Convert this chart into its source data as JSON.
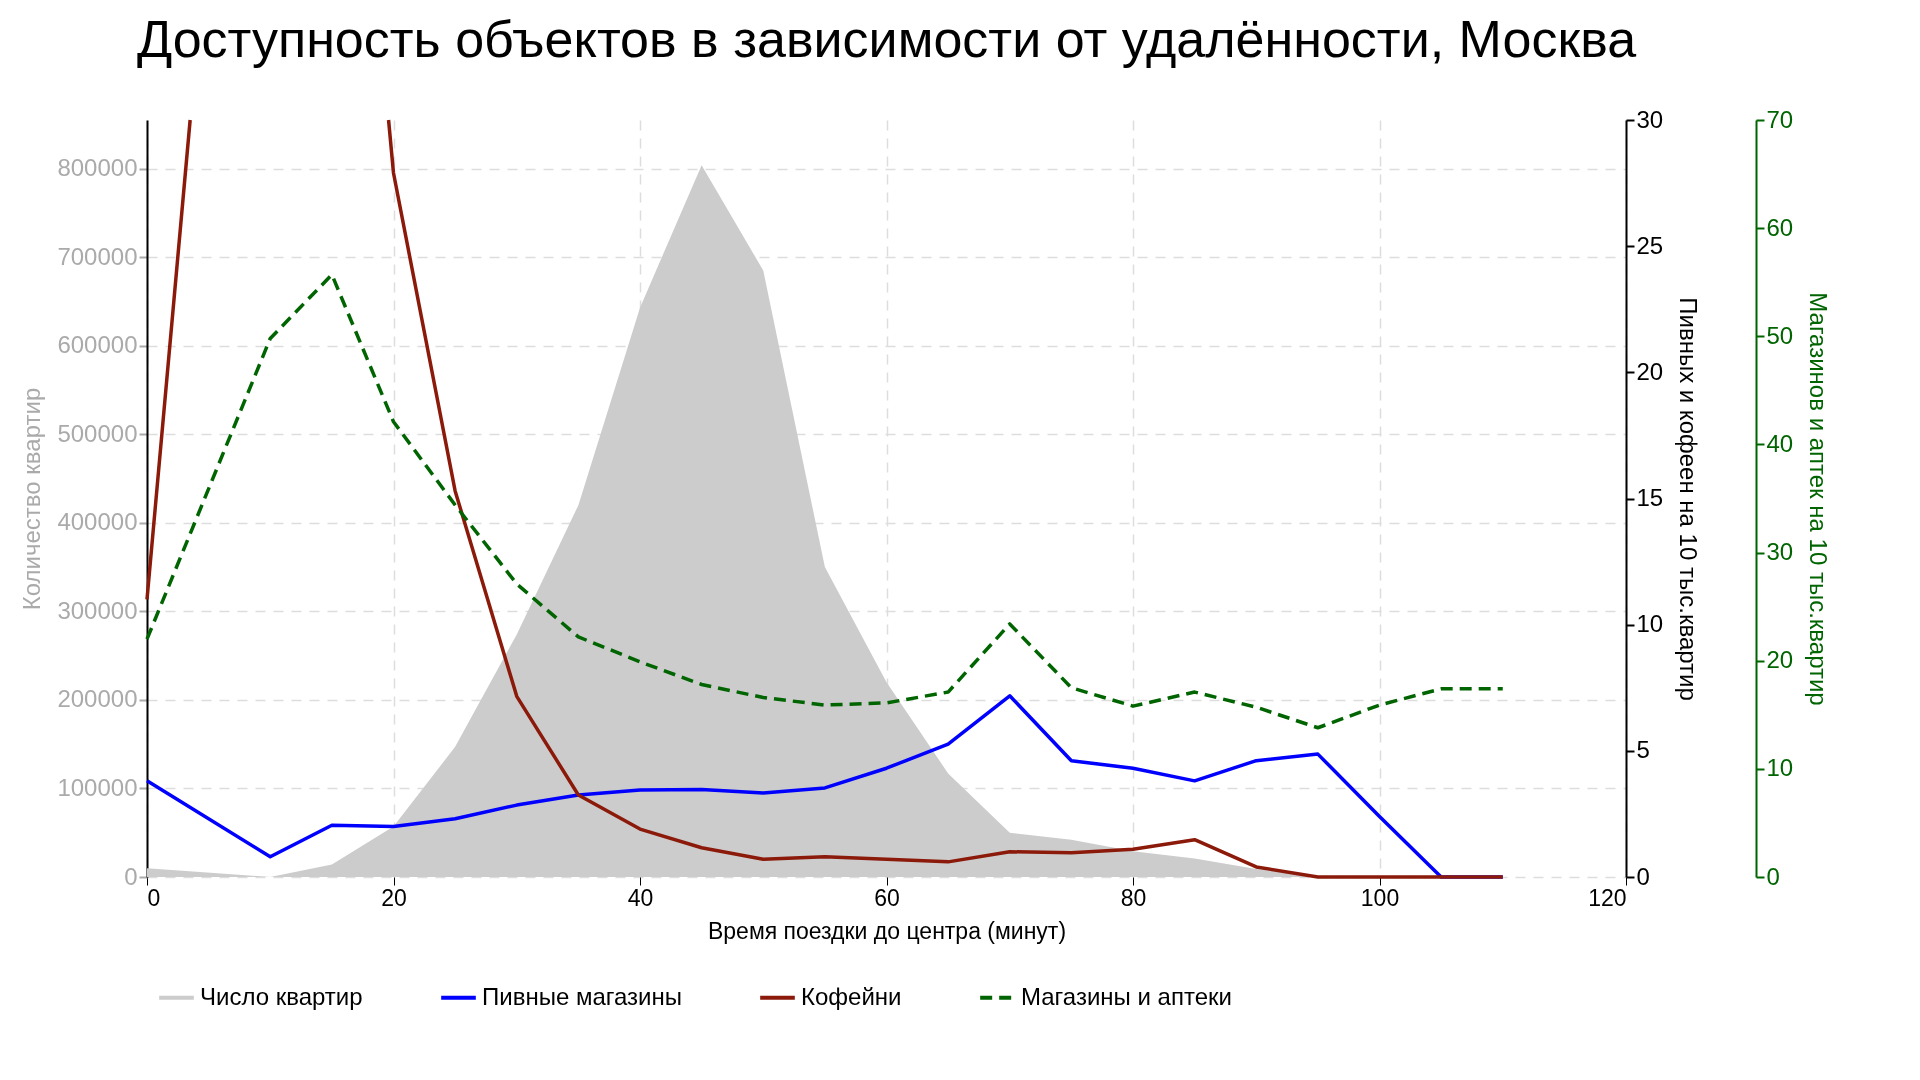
{
  "chart_data": {
    "type": "line",
    "title": "Доступность объектов в зависимости от удалённости, Москва",
    "xlabel": "Время поездки до центра (минут)",
    "ylabel": "Количество квартир",
    "y2label": "Пивных и кофеен на 10 тыс.квартир",
    "y3label": "Магазинов и аптек на 10 тыс.квартир",
    "x": [
      0,
      10,
      15,
      20,
      25,
      30,
      35,
      40,
      45,
      50,
      55,
      60,
      65,
      70,
      75,
      80,
      85,
      90,
      95,
      100,
      105,
      110
    ],
    "series": [
      {
        "name": "Число квартир",
        "type": "area",
        "axis": "y",
        "color": "#cccccc",
        "values": [
          10000,
          0,
          14000,
          57000,
          147000,
          274000,
          420000,
          643000,
          804000,
          685000,
          350000,
          220000,
          117000,
          50000,
          42000,
          29000,
          21000,
          9000,
          0,
          0,
          0,
          0
        ]
      },
      {
        "name": "Пивные магазины",
        "axis": "y2",
        "color": "#0000ff",
        "line_style": "solid",
        "values": [
          3.81,
          0.8,
          2.05,
          2.0,
          2.31,
          2.85,
          3.25,
          3.45,
          3.47,
          3.33,
          3.53,
          4.31,
          5.27,
          7.18,
          4.61,
          4.31,
          3.81,
          4.61,
          4.87,
          2.4,
          0,
          0
        ]
      },
      {
        "name": "Кофейни",
        "axis": "y2",
        "color": "#8b1a0a",
        "line_style": "solid",
        "x": [
          0,
          3.5,
          10,
          19.6,
          20,
          25,
          30,
          35,
          40,
          45,
          50,
          55,
          60,
          65,
          70,
          75,
          80,
          85,
          90,
          95,
          100,
          105,
          110
        ],
        "values": [
          11.0,
          30,
          null,
          30,
          27.9,
          15.3,
          7.16,
          3.25,
          1.9,
          1.16,
          0.7,
          0.8,
          0.7,
          0.6,
          1.0,
          0.96,
          1.1,
          1.48,
          0.4,
          0,
          0,
          0,
          0
        ]
      },
      {
        "name": "Магазины и аптеки",
        "axis": "y3",
        "color": "#006400",
        "line_style": "dashed",
        "values": [
          22.0,
          49.8,
          55.7,
          42.1,
          34.4,
          27.1,
          22.2,
          19.9,
          17.8,
          16.6,
          15.9,
          16.1,
          17.1,
          23.4,
          17.5,
          15.8,
          17.1,
          15.7,
          13.8,
          15.9,
          17.4,
          17.4
        ]
      }
    ],
    "xlim": [
      0,
      120
    ],
    "xticks": [
      0,
      20,
      40,
      60,
      80,
      100,
      120
    ],
    "ylim": [
      0,
      855000
    ],
    "yticks": [
      0,
      100000,
      200000,
      300000,
      400000,
      500000,
      600000,
      700000,
      800000
    ],
    "y2lim": [
      0,
      30
    ],
    "y2ticks": [
      0,
      5,
      10,
      15,
      20,
      25,
      30
    ],
    "y3lim": [
      0,
      70
    ],
    "y3ticks": [
      0,
      10,
      20,
      30,
      40,
      50,
      60,
      70
    ],
    "grid": true,
    "legend": "bottom"
  }
}
